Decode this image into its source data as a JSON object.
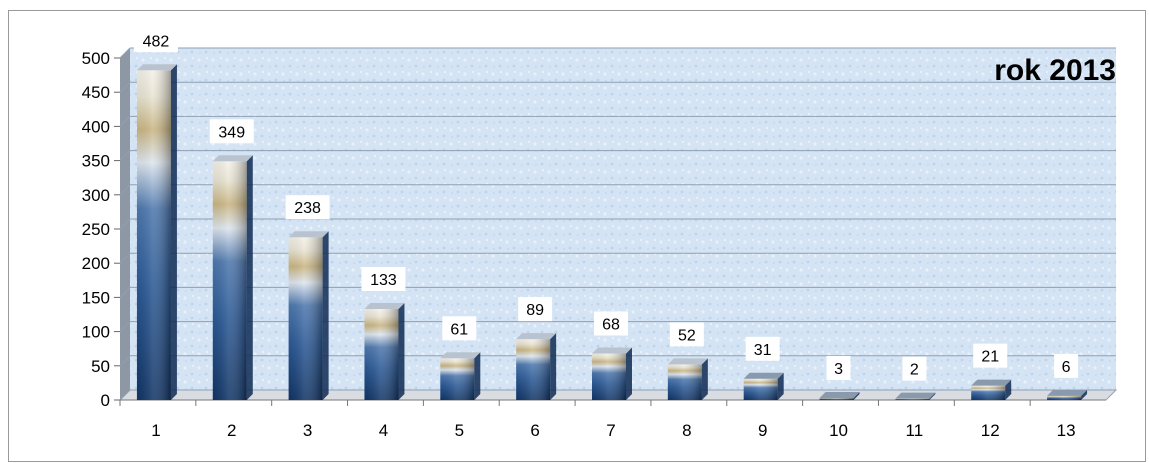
{
  "chart_data": {
    "type": "bar",
    "title": "rok 2013",
    "categories": [
      "1",
      "2",
      "3",
      "4",
      "5",
      "6",
      "7",
      "8",
      "9",
      "10",
      "11",
      "12",
      "13"
    ],
    "values": [
      482,
      349,
      238,
      133,
      61,
      89,
      68,
      52,
      31,
      3,
      2,
      21,
      6
    ],
    "ylim": [
      0,
      500
    ],
    "yticks": [
      0,
      50,
      100,
      150,
      200,
      250,
      300,
      350,
      400,
      450,
      500
    ],
    "grid": true,
    "legend": "none",
    "xlabel": "",
    "ylabel": "",
    "colors": {
      "bar_dark": "#1c3f73",
      "bar_mid": "#3e6aa6",
      "bar_light": "#dfe6ee",
      "bar_gold": "#c9b582",
      "plot_bg": "#d6e6f5",
      "grid": "#a8b4c0",
      "label_box": "#ffffff"
    }
  }
}
